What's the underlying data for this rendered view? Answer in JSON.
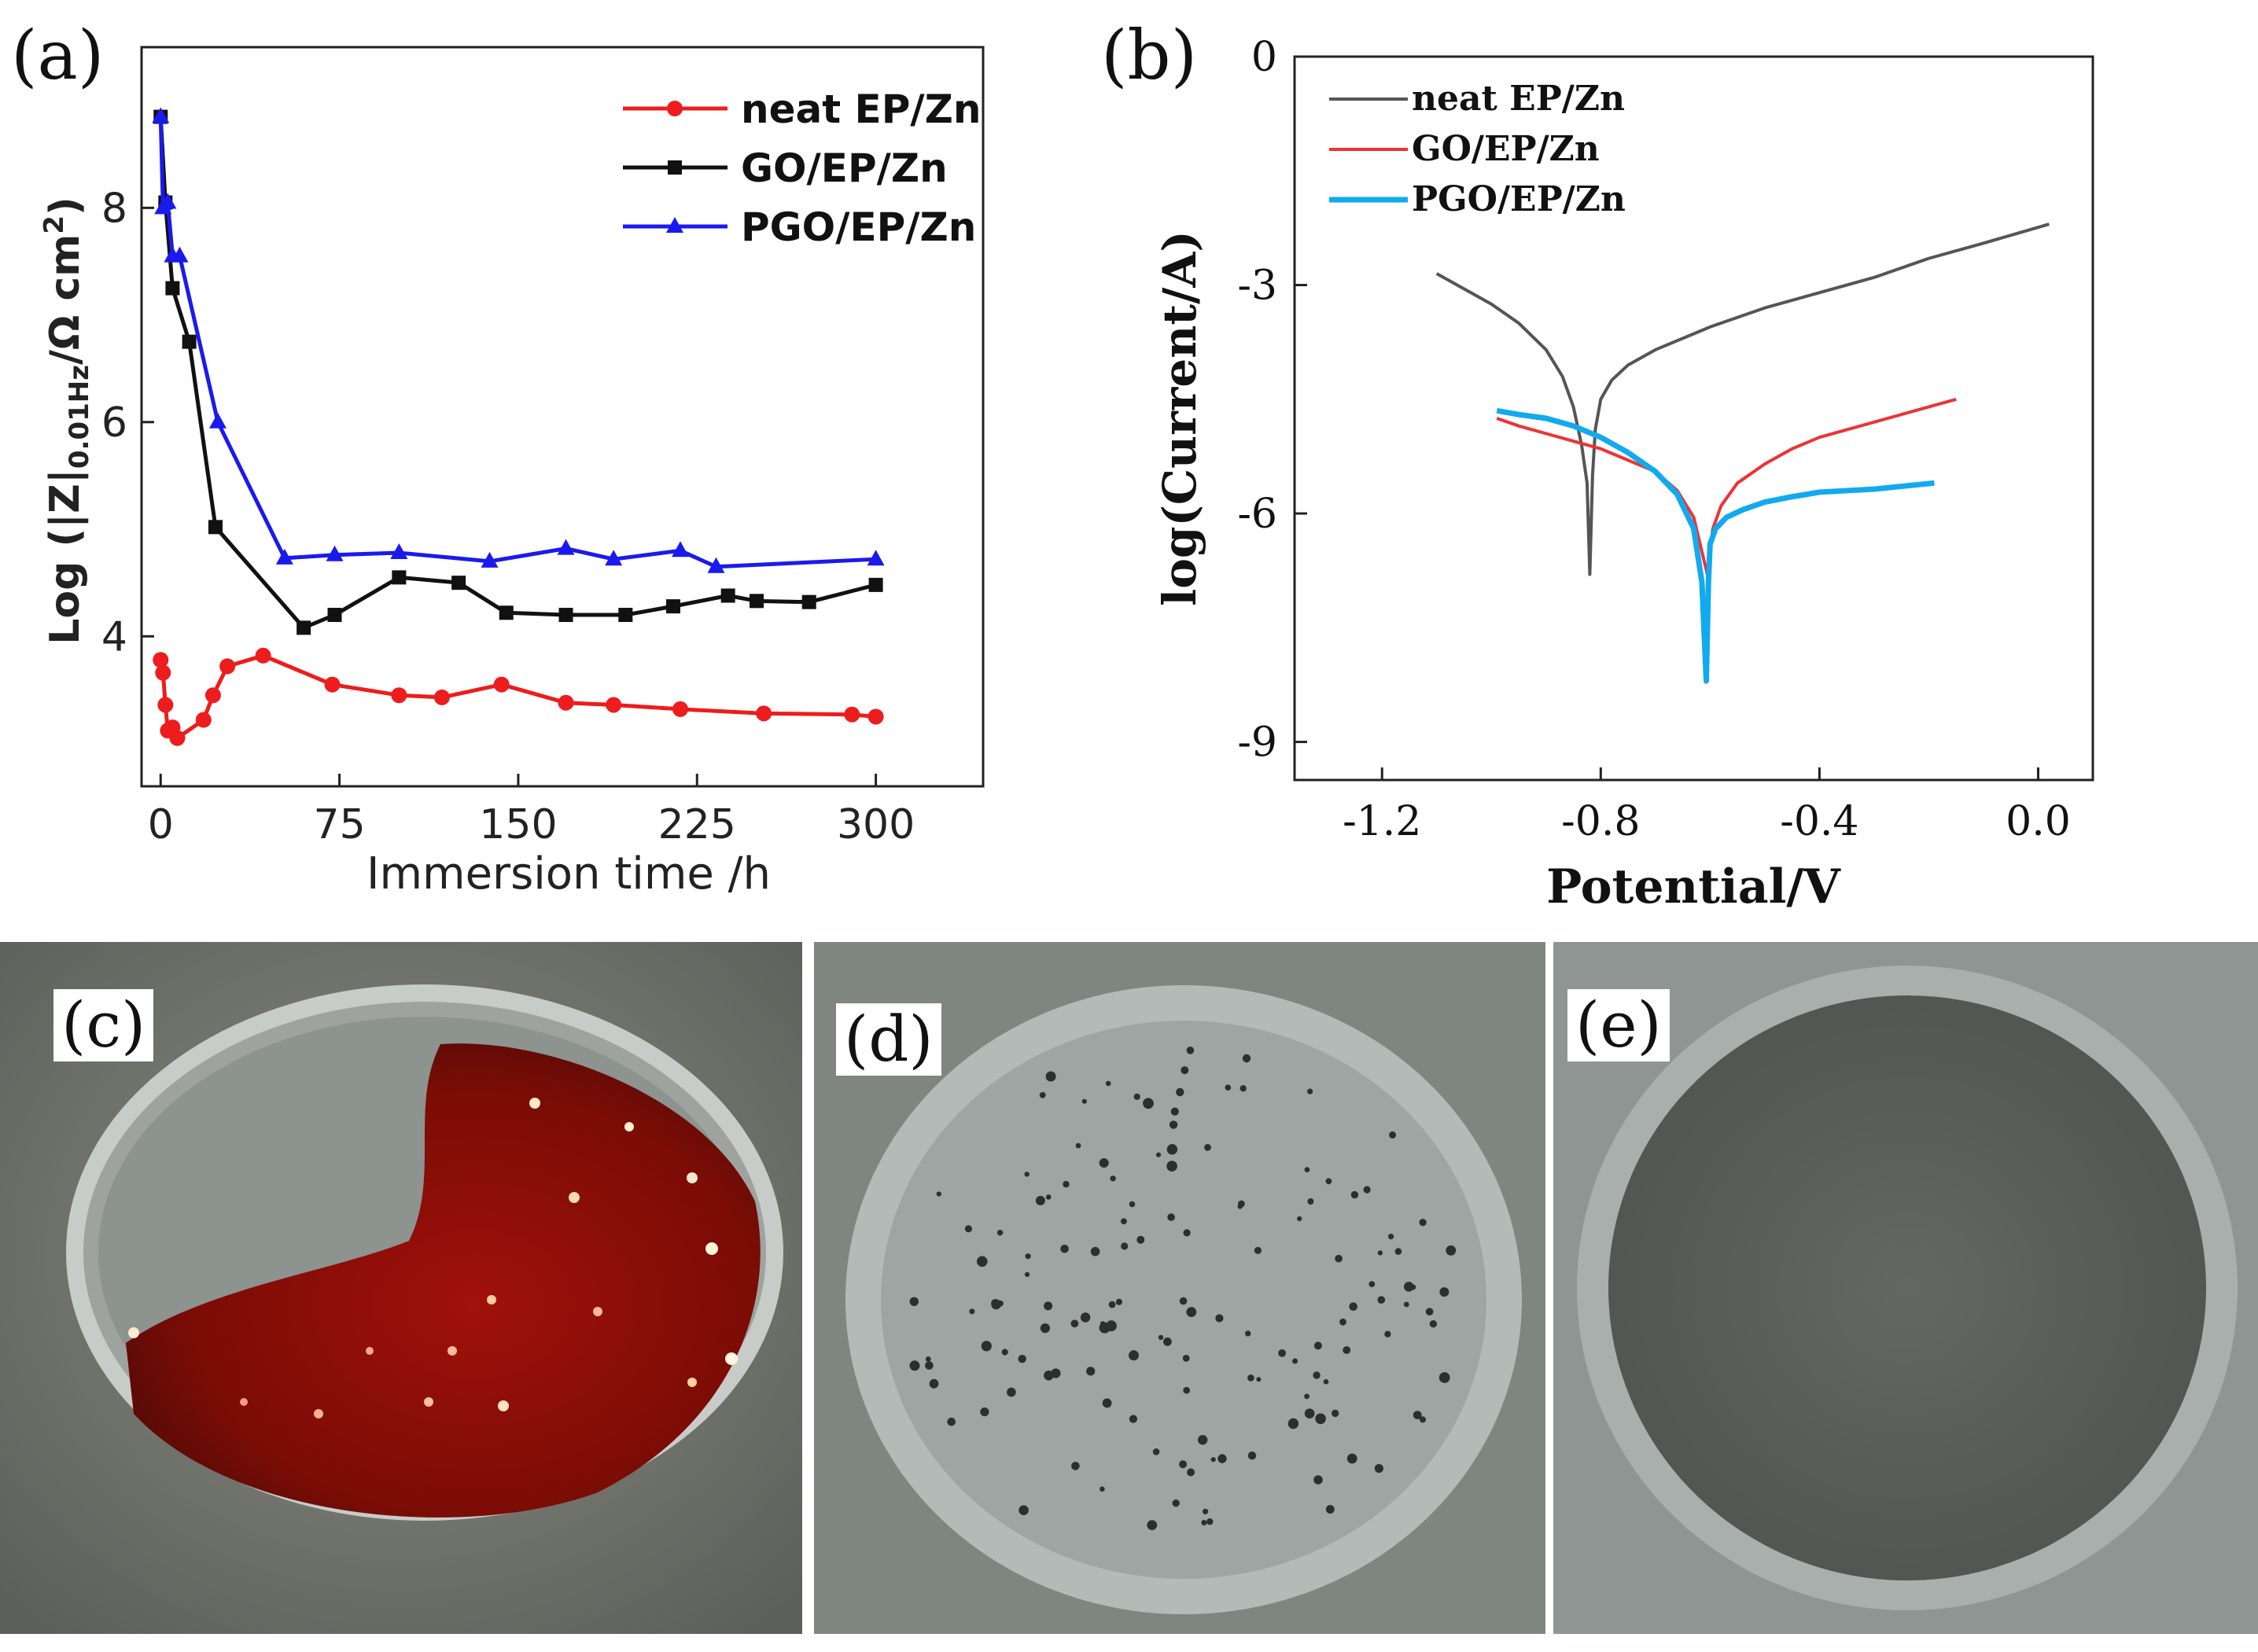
{
  "panels": {
    "a": {
      "label": "(a)"
    },
    "b": {
      "label": "(b)"
    },
    "c": {
      "label": "(c)"
    },
    "d": {
      "label": "(d)"
    },
    "e": {
      "label": "(e)"
    }
  },
  "colors": {
    "neat_a": "#ee1c1c",
    "go_a": "#111111",
    "pgo_a": "#1a1aee",
    "neat_b": "#555555",
    "go_b": "#ee3333",
    "pgo_b": "#11aaee"
  },
  "chart_data": [
    {
      "id": "a",
      "type": "line",
      "title": "",
      "xlabel": "Immersion time /h",
      "ylabel_parts": {
        "pre": "Log (|Z|",
        "sub": "0.01Hz",
        "mid": "/Ω cm",
        "sup": "2",
        "post": ")"
      },
      "xlim": [
        -8,
        345
      ],
      "ylim": [
        2.6,
        9.5
      ],
      "xticks": [
        0,
        75,
        150,
        225,
        300
      ],
      "xtick_labels": [
        "0",
        "75",
        "150",
        "225",
        "300"
      ],
      "yticks": [
        4,
        6,
        8
      ],
      "ytick_labels": [
        "4",
        "6",
        "8"
      ],
      "legend_position": "top-right",
      "series": [
        {
          "name": "neat EP/Zn",
          "marker": "circle",
          "x": [
            0,
            1,
            2,
            3,
            5,
            7,
            18,
            22,
            28,
            43,
            72,
            100,
            118,
            143,
            170,
            190,
            218,
            253,
            290,
            300
          ],
          "y": [
            3.78,
            3.66,
            3.36,
            3.12,
            3.15,
            3.05,
            3.22,
            3.45,
            3.72,
            3.82,
            3.55,
            3.45,
            3.43,
            3.55,
            3.38,
            3.36,
            3.32,
            3.28,
            3.27,
            3.25
          ]
        },
        {
          "name": "GO/EP/Zn",
          "marker": "square",
          "x": [
            0,
            2,
            5,
            12,
            23,
            60,
            73,
            100,
            125,
            145,
            170,
            195,
            215,
            238,
            250,
            272,
            300
          ],
          "y": [
            8.85,
            8.05,
            7.25,
            6.75,
            5.02,
            4.08,
            4.2,
            4.55,
            4.5,
            4.22,
            4.2,
            4.2,
            4.28,
            4.38,
            4.33,
            4.32,
            4.48
          ]
        },
        {
          "name": "PGO/EP/Zn",
          "marker": "triangle",
          "x": [
            0,
            1,
            3,
            5,
            8,
            24,
            52,
            73,
            100,
            138,
            170,
            190,
            218,
            233,
            300
          ],
          "y": [
            8.85,
            8.0,
            8.05,
            7.55,
            7.55,
            6.0,
            4.73,
            4.76,
            4.78,
            4.7,
            4.82,
            4.72,
            4.8,
            4.65,
            4.72
          ]
        }
      ]
    },
    {
      "id": "b",
      "type": "line",
      "title": "",
      "xlabel": "Potential/V",
      "ylabel": "log(Current/A)",
      "xlim": [
        -1.36,
        0.1
      ],
      "ylim": [
        -9.5,
        0
      ],
      "xticks": [
        -1.2,
        -0.8,
        -0.4,
        0.0
      ],
      "xtick_labels": [
        "-1.2",
        "-0.8",
        "-0.4",
        "0.0"
      ],
      "yticks": [
        0,
        -3,
        -6,
        -9
      ],
      "ytick_labels": [
        "0",
        "-3",
        "-6",
        "-9"
      ],
      "legend_position": "top-left",
      "series": [
        {
          "name": "neat EP/Zn",
          "x": [
            -1.1,
            -1.05,
            -1.0,
            -0.95,
            -0.9,
            -0.87,
            -0.85,
            -0.835,
            -0.825,
            -0.82,
            -0.815,
            -0.81,
            -0.8,
            -0.78,
            -0.75,
            -0.7,
            -0.6,
            -0.5,
            -0.4,
            -0.3,
            -0.2,
            -0.1,
            0.02
          ],
          "y": [
            -2.85,
            -3.05,
            -3.25,
            -3.5,
            -3.85,
            -4.2,
            -4.6,
            -5.1,
            -5.6,
            -6.8,
            -5.5,
            -4.9,
            -4.5,
            -4.25,
            -4.05,
            -3.85,
            -3.55,
            -3.3,
            -3.1,
            -2.9,
            -2.65,
            -2.45,
            -2.2
          ]
        },
        {
          "name": "GO/EP/Zn",
          "x": [
            -0.99,
            -0.95,
            -0.9,
            -0.85,
            -0.8,
            -0.75,
            -0.7,
            -0.66,
            -0.63,
            -0.615,
            -0.605,
            -0.6,
            -0.595,
            -0.58,
            -0.55,
            -0.5,
            -0.45,
            -0.4,
            -0.3,
            -0.2,
            -0.15
          ],
          "y": [
            -4.75,
            -4.85,
            -4.95,
            -5.05,
            -5.15,
            -5.3,
            -5.45,
            -5.7,
            -6.05,
            -6.5,
            -6.8,
            -6.5,
            -6.2,
            -5.9,
            -5.6,
            -5.35,
            -5.15,
            -5.0,
            -4.8,
            -4.6,
            -4.5
          ]
        },
        {
          "name": "PGO/EP/Zn",
          "x": [
            -0.99,
            -0.95,
            -0.9,
            -0.85,
            -0.8,
            -0.75,
            -0.7,
            -0.66,
            -0.63,
            -0.615,
            -0.607,
            -0.603,
            -0.6,
            -0.59,
            -0.57,
            -0.54,
            -0.5,
            -0.45,
            -0.4,
            -0.3,
            -0.19
          ],
          "y": [
            -4.65,
            -4.7,
            -4.75,
            -4.85,
            -5.0,
            -5.2,
            -5.45,
            -5.75,
            -6.2,
            -6.9,
            -8.2,
            -6.9,
            -6.4,
            -6.2,
            -6.05,
            -5.95,
            -5.85,
            -5.78,
            -5.72,
            -5.68,
            -5.6
          ]
        }
      ]
    }
  ]
}
